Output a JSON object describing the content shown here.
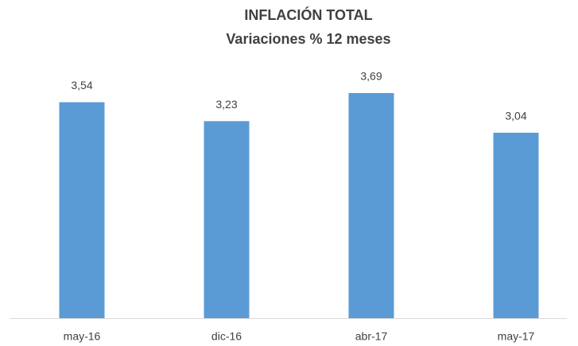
{
  "chart_data": {
    "type": "bar",
    "title": "INFLACIÓN TOTAL",
    "subtitle": "Variaciones % 12 meses",
    "categories": [
      "may-16",
      "dic-16",
      "abr-17",
      "may-17"
    ],
    "values": [
      3.54,
      3.23,
      3.69,
      3.04
    ],
    "value_labels": [
      "3,54",
      "3,23",
      "3,69",
      "3,04"
    ],
    "color": "#5b9bd5"
  }
}
